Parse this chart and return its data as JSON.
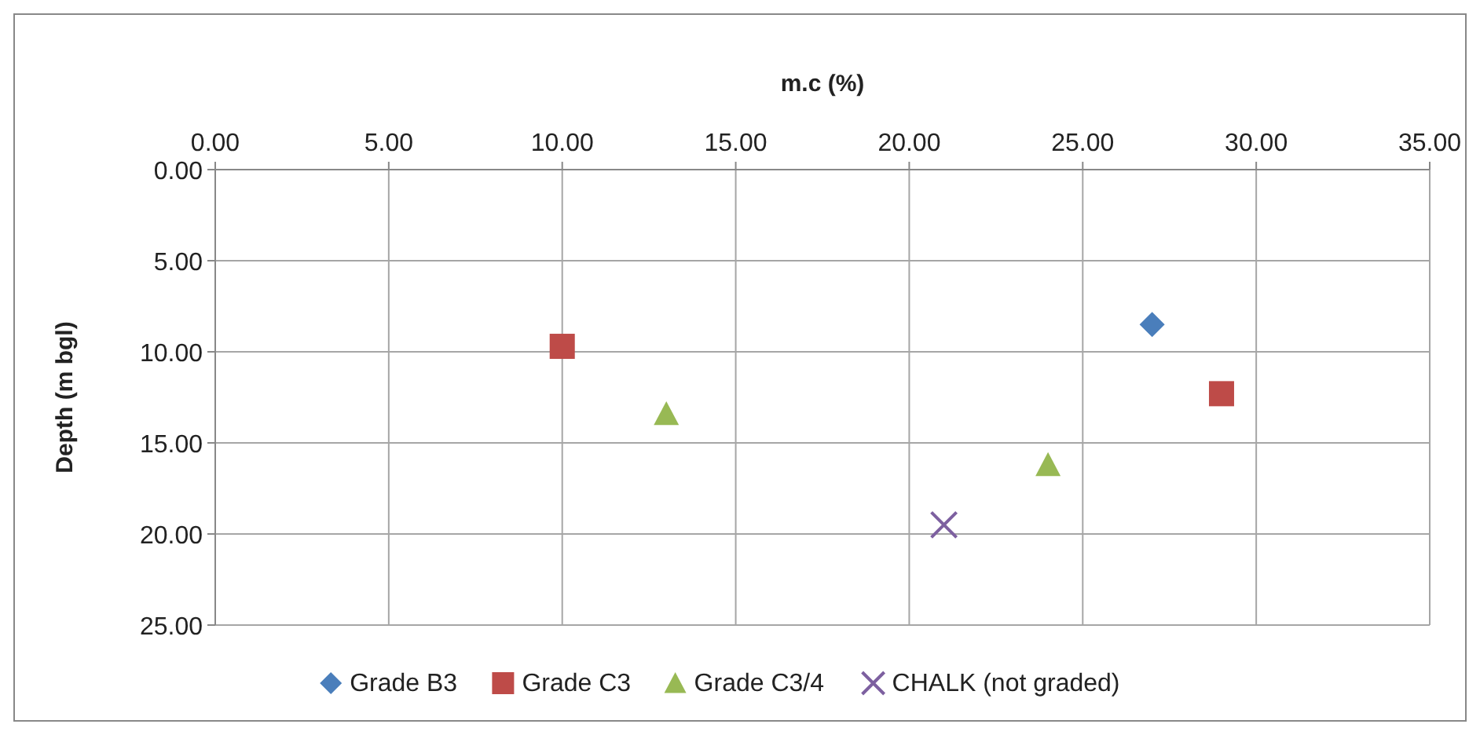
{
  "chart_data": {
    "type": "scatter",
    "xlabel": "m.c (%)",
    "ylabel": "Depth (m bgl)",
    "xlim": [
      0,
      35
    ],
    "ylim": [
      25,
      0
    ],
    "xticks": [
      {
        "value": 0,
        "label": "0.00"
      },
      {
        "value": 5,
        "label": "5.00"
      },
      {
        "value": 10,
        "label": "10.00"
      },
      {
        "value": 15,
        "label": "15.00"
      },
      {
        "value": 20,
        "label": "20.00"
      },
      {
        "value": 25,
        "label": "25.00"
      },
      {
        "value": 30,
        "label": "30.00"
      },
      {
        "value": 35,
        "label": "35.00"
      }
    ],
    "yticks": [
      {
        "value": 0,
        "label": "0.00"
      },
      {
        "value": 5,
        "label": "5.00"
      },
      {
        "value": 10,
        "label": "10.00"
      },
      {
        "value": 15,
        "label": "15.00"
      },
      {
        "value": 20,
        "label": "20.00"
      },
      {
        "value": 25,
        "label": "25.00"
      }
    ],
    "grid": true,
    "legend": "bottom",
    "series": [
      {
        "name": "Grade B3",
        "color": "#4a7ebb",
        "marker": "diamond",
        "x": [
          27
        ],
        "values": [
          8.5
        ]
      },
      {
        "name": "Grade C3",
        "color": "#be4b48",
        "marker": "square",
        "x": [
          10,
          29
        ],
        "values": [
          9.7,
          12.3
        ]
      },
      {
        "name": "Grade C3/4",
        "color": "#98b954",
        "marker": "triangle",
        "x": [
          13,
          24
        ],
        "values": [
          13.4,
          16.2
        ]
      },
      {
        "name": "CHALK (not graded)",
        "color": "#7d60a0",
        "marker": "cross",
        "x": [
          21
        ],
        "values": [
          19.5
        ]
      }
    ]
  }
}
